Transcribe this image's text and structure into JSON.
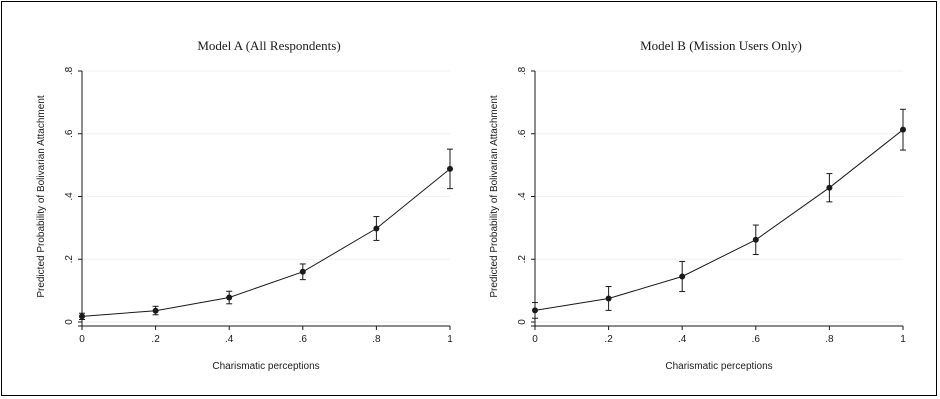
{
  "chart_data": [
    {
      "type": "line",
      "title": "Model A (All Respondents)",
      "xlabel": "Charismatic perceptions",
      "ylabel": "Predicted Probability of Bolivarian Attachment",
      "x": [
        0,
        0.2,
        0.4,
        0.6,
        0.8,
        1
      ],
      "x_tick_labels": [
        "0",
        ".2",
        ".4",
        ".6",
        ".8",
        "1"
      ],
      "y_ticks": [
        0,
        0.2,
        0.4,
        0.6,
        0.8
      ],
      "y_tick_labels": [
        "0",
        ".2",
        ".4",
        ".6",
        ".8"
      ],
      "xlim": [
        0,
        1
      ],
      "ylim": [
        0,
        0.8
      ],
      "grid": "horizontal",
      "series": [
        {
          "values": [
            0.018,
            0.036,
            0.078,
            0.16,
            0.298,
            0.488
          ],
          "ci_low": [
            0.008,
            0.023,
            0.058,
            0.135,
            0.26,
            0.425
          ],
          "ci_high": [
            0.028,
            0.05,
            0.098,
            0.185,
            0.336,
            0.551
          ]
        }
      ]
    },
    {
      "type": "line",
      "title": "Model B (Mission Users Only)",
      "xlabel": "Charismatic perceptions",
      "ylabel": "Predicted Probability of Bolivarian Attachment",
      "x": [
        0,
        0.2,
        0.4,
        0.6,
        0.8,
        1
      ],
      "x_tick_labels": [
        "0",
        ".2",
        ".4",
        ".6",
        ".8",
        "1"
      ],
      "y_ticks": [
        0,
        0.2,
        0.4,
        0.6,
        0.8
      ],
      "y_tick_labels": [
        "0",
        ".2",
        ".4",
        ".6",
        ".8"
      ],
      "xlim": [
        0,
        1
      ],
      "ylim": [
        0,
        0.8
      ],
      "grid": "horizontal",
      "series": [
        {
          "values": [
            0.037,
            0.075,
            0.145,
            0.262,
            0.428,
            0.613
          ],
          "ci_low": [
            0.012,
            0.037,
            0.097,
            0.215,
            0.383,
            0.548
          ],
          "ci_high": [
            0.062,
            0.113,
            0.193,
            0.309,
            0.473,
            0.678
          ]
        }
      ]
    }
  ]
}
